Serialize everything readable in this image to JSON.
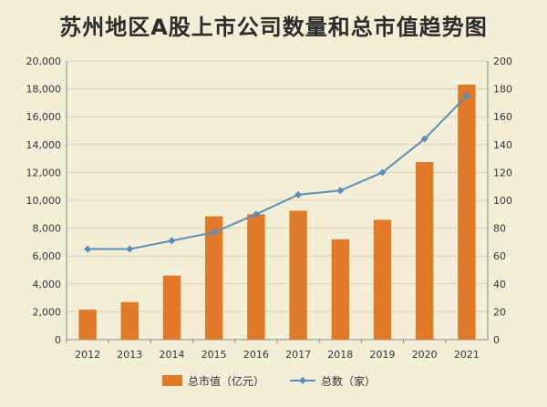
{
  "chart_data": {
    "type": "bar",
    "title": "苏州地区A股上市公司数量和总市值趋势图",
    "categories": [
      "2012",
      "2013",
      "2014",
      "2015",
      "2016",
      "2017",
      "2018",
      "2019",
      "2020",
      "2021"
    ],
    "series": [
      {
        "name": "总市值（亿元）",
        "type": "bar",
        "axis": "left",
        "color": "#e07a28",
        "values": [
          2150,
          2700,
          4600,
          8850,
          9000,
          9250,
          7200,
          8600,
          12750,
          18300
        ]
      },
      {
        "name": "总数（家）",
        "type": "line",
        "axis": "right",
        "color": "#5b8db8",
        "values": [
          65,
          65,
          71,
          77,
          90,
          104,
          107,
          120,
          144,
          175
        ]
      }
    ],
    "y_left": {
      "min": 0,
      "max": 20000,
      "step": 2000
    },
    "y_right": {
      "min": 0,
      "max": 200,
      "step": 20
    },
    "legend_position": "bottom",
    "grid": true
  }
}
